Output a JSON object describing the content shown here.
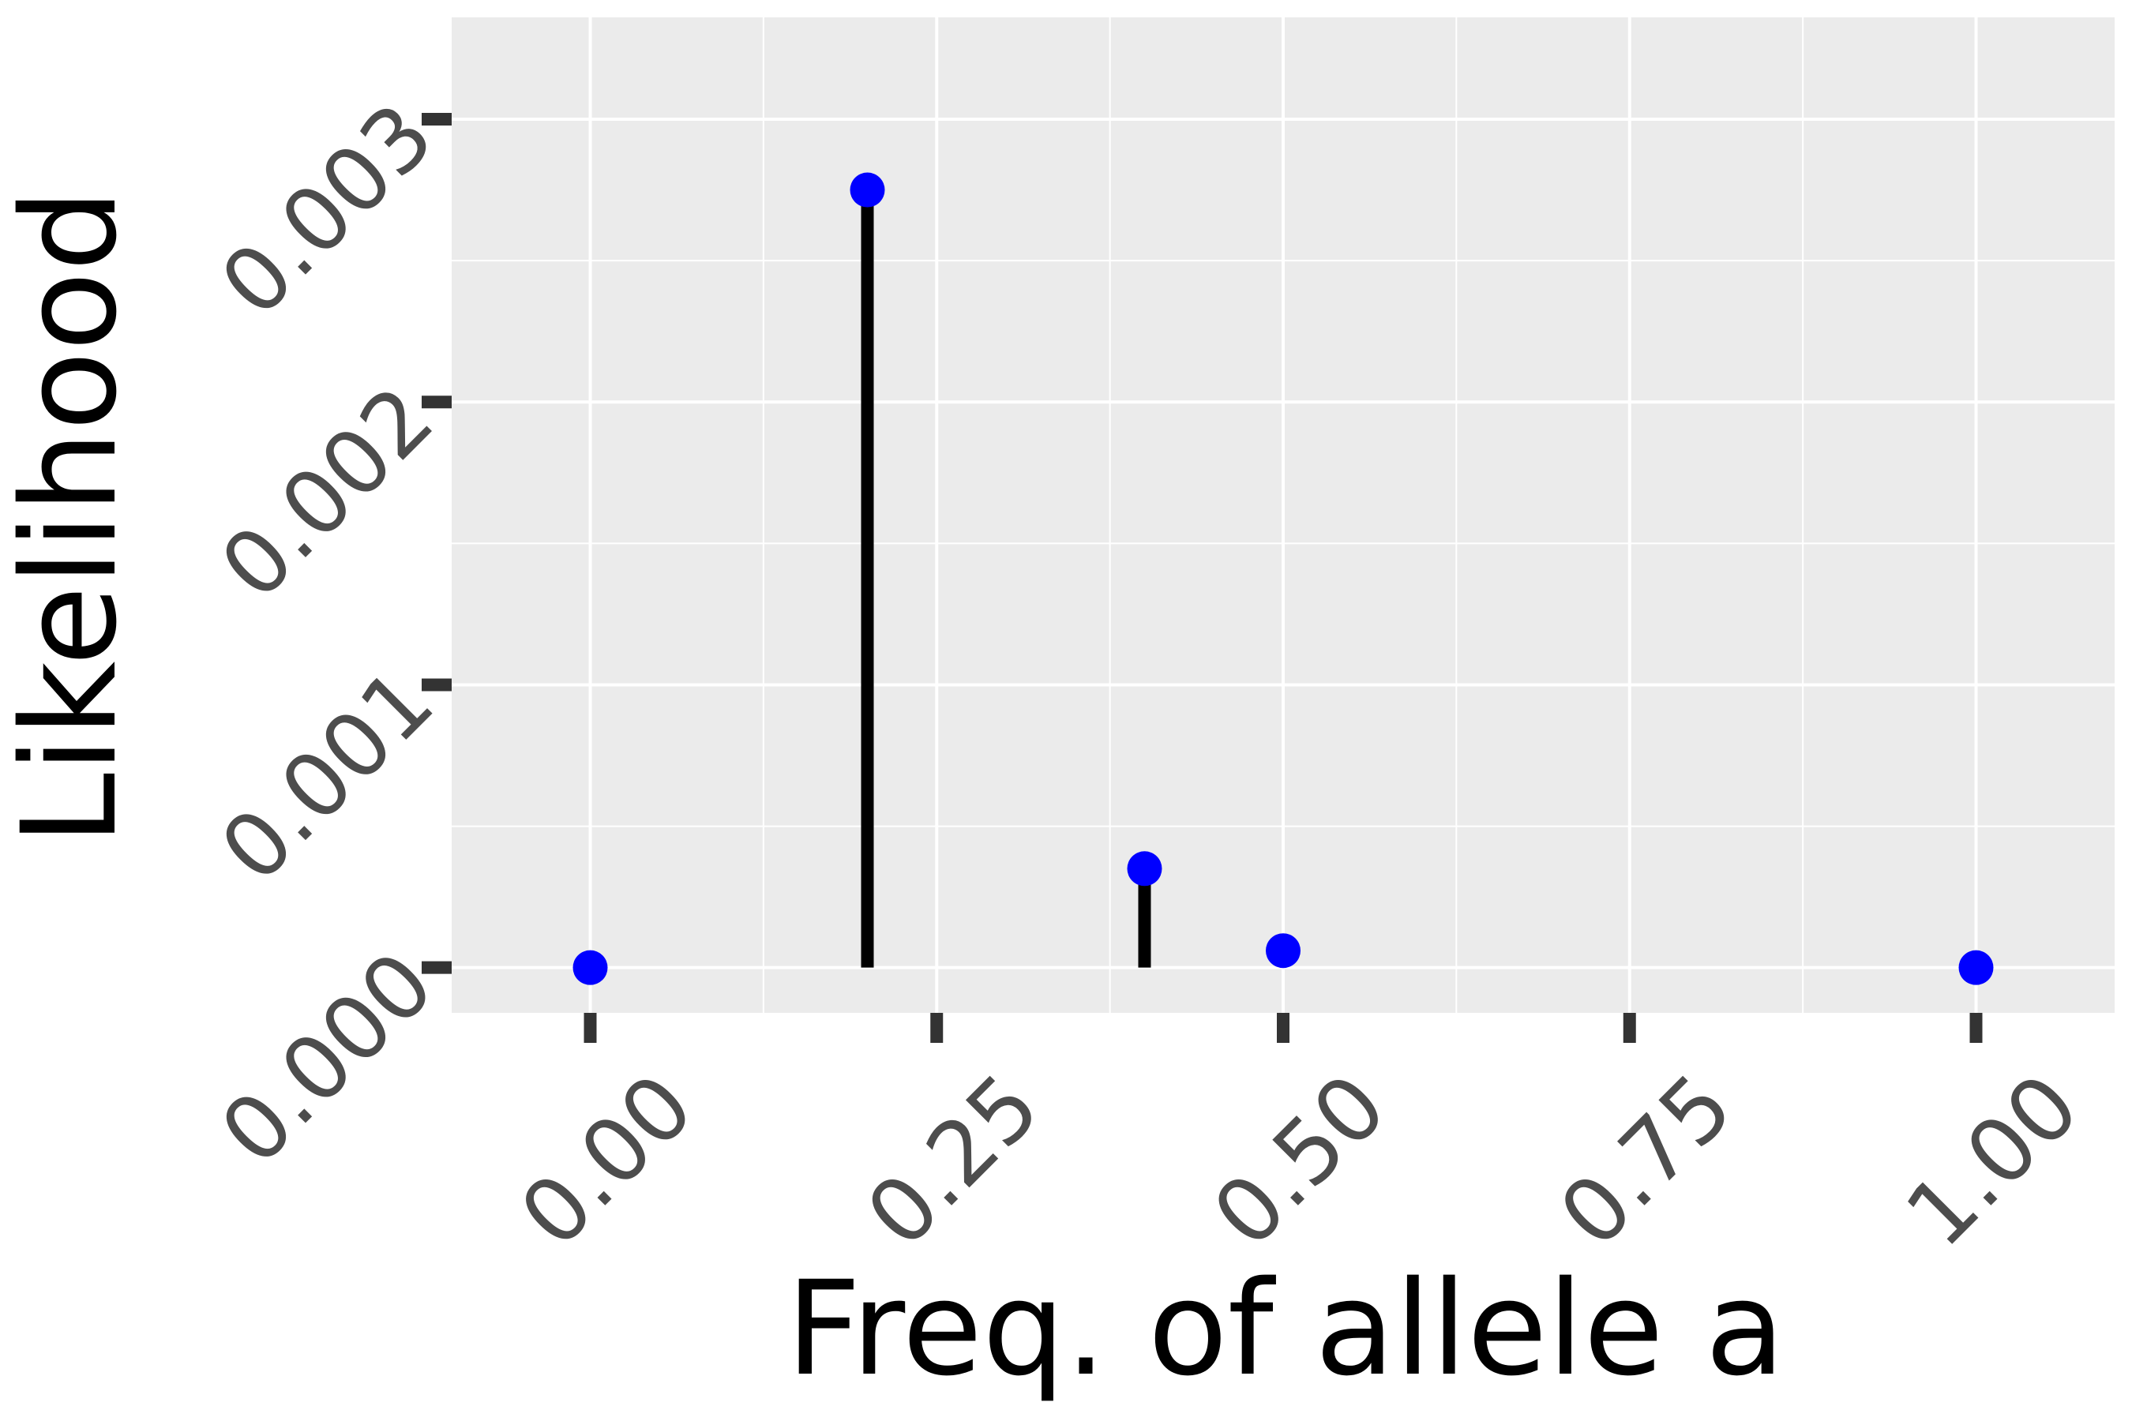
{
  "chart_data": {
    "type": "scatter",
    "title": "",
    "xlabel": "Freq. of allele a",
    "ylabel": "Likelihood",
    "xlim": [
      -0.1,
      1.1
    ],
    "ylim": [
      -0.00016,
      0.00336
    ],
    "x_ticks": [
      {
        "value": 0.0,
        "label": "0.00"
      },
      {
        "value": 0.25,
        "label": "0.25"
      },
      {
        "value": 0.5,
        "label": "0.50"
      },
      {
        "value": 0.75,
        "label": "0.75"
      },
      {
        "value": 1.0,
        "label": "1.00"
      }
    ],
    "y_ticks": [
      {
        "value": 0.0,
        "label": "0.000"
      },
      {
        "value": 0.001,
        "label": "0.001"
      },
      {
        "value": 0.002,
        "label": "0.002"
      },
      {
        "value": 0.003,
        "label": "0.003"
      }
    ],
    "grid": true,
    "panel_background": "#ebebeb",
    "grid_color": "#ffffff",
    "point_color": "#0000ff",
    "segment_color": "#000000",
    "points": [
      {
        "x": 0.0,
        "y": 0.0,
        "stem": false
      },
      {
        "x": 0.2,
        "y": 0.00275,
        "stem": true
      },
      {
        "x": 0.4,
        "y": 0.00035,
        "stem": true
      },
      {
        "x": 0.5,
        "y": 6e-05,
        "stem": false
      },
      {
        "x": 1.0,
        "y": 0.0,
        "stem": false
      }
    ]
  }
}
